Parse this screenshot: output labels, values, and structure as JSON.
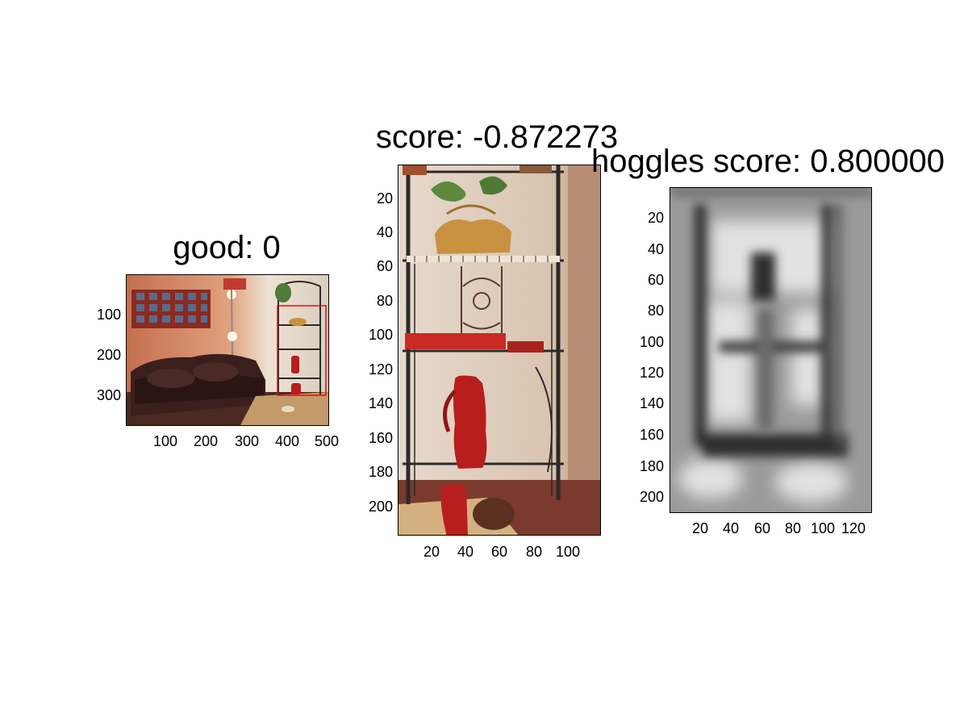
{
  "panels": [
    {
      "title": "good: 0",
      "image_description": "room photo",
      "x_ticks": [
        "100",
        "200",
        "300",
        "400",
        "500"
      ],
      "y_ticks": [
        "100",
        "200",
        "300"
      ]
    },
    {
      "title": "score: -0.872273",
      "image_description": "shelf crop",
      "x_ticks": [
        "20",
        "40",
        "60",
        "80",
        "100"
      ],
      "y_ticks": [
        "20",
        "40",
        "60",
        "80",
        "100",
        "120",
        "140",
        "160",
        "180",
        "200"
      ]
    },
    {
      "title": "hoggles score: 0.800000",
      "image_description": "hoggles grayscale",
      "x_ticks": [
        "20",
        "40",
        "60",
        "80",
        "100",
        "120"
      ],
      "y_ticks": [
        "20",
        "40",
        "60",
        "80",
        "100",
        "120",
        "140",
        "160",
        "180",
        "200"
      ]
    }
  ],
  "colors": {
    "detection_box": "#ff0000",
    "wall": "#d99577",
    "sofa": "#3a1f1d",
    "shelf_metal": "#2b2a28",
    "pitcher_red": "#b81e1e"
  }
}
